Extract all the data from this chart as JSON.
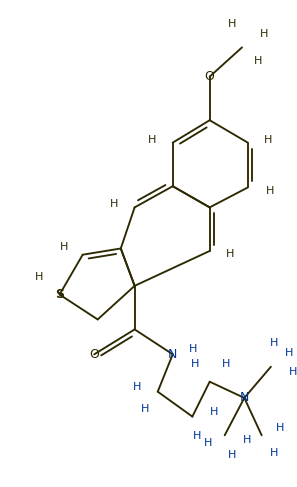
{
  "bg_color": "#ffffff",
  "bond_color": "#2d2800",
  "S_color": "#2d2800",
  "N_color": "#003399",
  "O_color": "#2d2800",
  "H_color_dark": "#2d2800",
  "H_color_blue": "#003399",
  "figsize": [
    2.97,
    4.87
  ],
  "dpi": 100,
  "xlim": [
    0.2,
    5.2
  ],
  "ylim": [
    3.0,
    10.8
  ],
  "bond_lw": 1.35
}
